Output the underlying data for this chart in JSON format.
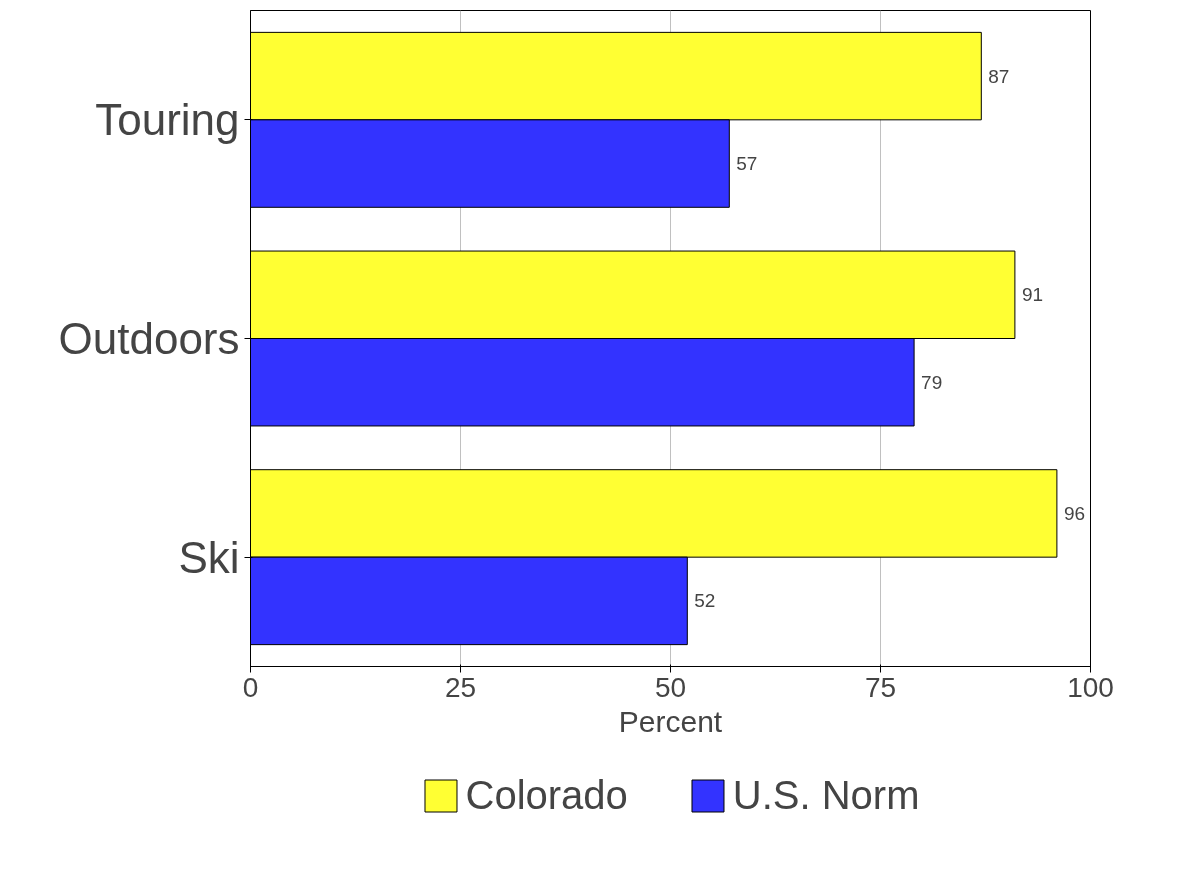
{
  "chart_data": {
    "type": "bar",
    "orientation": "horizontal",
    "categories": [
      "Touring",
      "Outdoors",
      "Ski"
    ],
    "series": [
      {
        "name": "Colorado",
        "color": "#ffff33",
        "values": [
          87,
          91,
          96
        ]
      },
      {
        "name": "U.S. Norm",
        "color": "#3333ff",
        "values": [
          57,
          79,
          52
        ]
      }
    ],
    "xlabel": "Percent",
    "xlim": [
      0,
      100
    ],
    "xticks": [
      0,
      25,
      50,
      75,
      100
    ],
    "grid": "x",
    "legend": "bottom",
    "data_labels": true
  }
}
